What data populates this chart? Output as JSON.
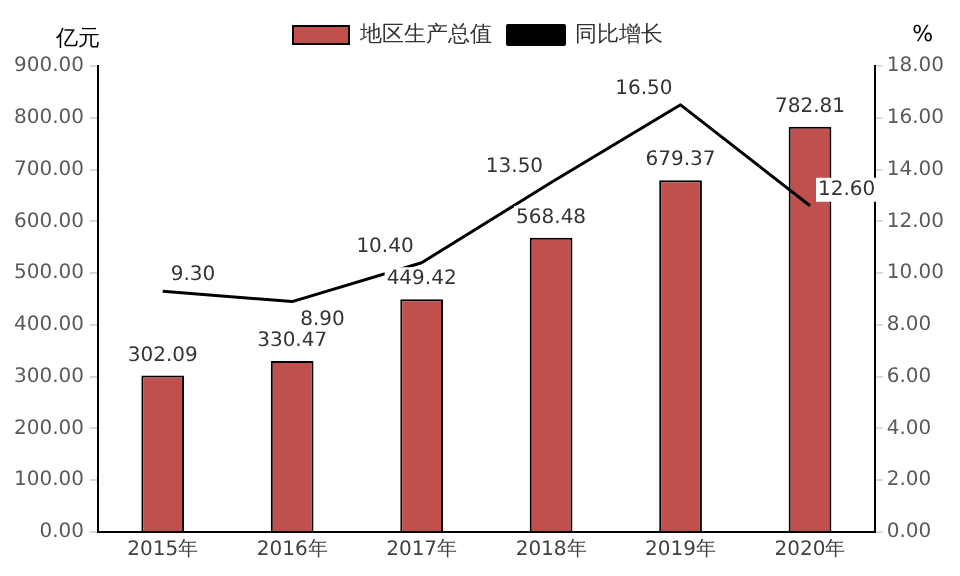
{
  "chart_data": {
    "type": "bar",
    "categories": [
      "2015年",
      "2016年",
      "2017年",
      "2018年",
      "2019年",
      "2020年"
    ],
    "series": [
      {
        "name": "地区生产总值",
        "color": "#c0504d",
        "values": [
          302.09,
          330.47,
          449.42,
          568.48,
          679.37,
          782.81
        ],
        "value_labels": [
          "302.09",
          "330.47",
          "449.42",
          "568.48",
          "679.37",
          "782.81"
        ]
      },
      {
        "name": "同比增长",
        "type": "line",
        "axis": "y2",
        "color": "#000000",
        "values": [
          9.3,
          8.9,
          10.4,
          13.5,
          16.5,
          12.6
        ],
        "value_labels": [
          "9.30",
          "8.90",
          "10.40",
          "13.50",
          "16.50",
          "12.60"
        ]
      }
    ],
    "ylabel": "亿元",
    "y2label": "%",
    "ylim": [
      0,
      900
    ],
    "yticks": [
      {
        "value": 0,
        "label": "0.00"
      },
      {
        "value": 100,
        "label": "100.00"
      },
      {
        "value": 200,
        "label": "200.00"
      },
      {
        "value": 300,
        "label": "300.00"
      },
      {
        "value": 400,
        "label": "400.00"
      },
      {
        "value": 500,
        "label": "500.00"
      },
      {
        "value": 600,
        "label": "600.00"
      },
      {
        "value": 700,
        "label": "700.00"
      },
      {
        "value": 800,
        "label": "800.00"
      },
      {
        "value": 900,
        "label": "900.00"
      }
    ],
    "y2lim": [
      0,
      18
    ],
    "y2ticks": [
      {
        "value": 0,
        "label": "0.00"
      },
      {
        "value": 2,
        "label": "2.00"
      },
      {
        "value": 4,
        "label": "4.00"
      },
      {
        "value": 6,
        "label": "6.00"
      },
      {
        "value": 8,
        "label": "8.00"
      },
      {
        "value": 10,
        "label": "10.00"
      },
      {
        "value": 12,
        "label": "12.00"
      },
      {
        "value": 14,
        "label": "14.00"
      },
      {
        "value": 16,
        "label": "16.00"
      },
      {
        "value": 18,
        "label": "18.00"
      }
    ],
    "grid": false,
    "legend": "top",
    "marker": "none",
    "line_style": "solid"
  }
}
